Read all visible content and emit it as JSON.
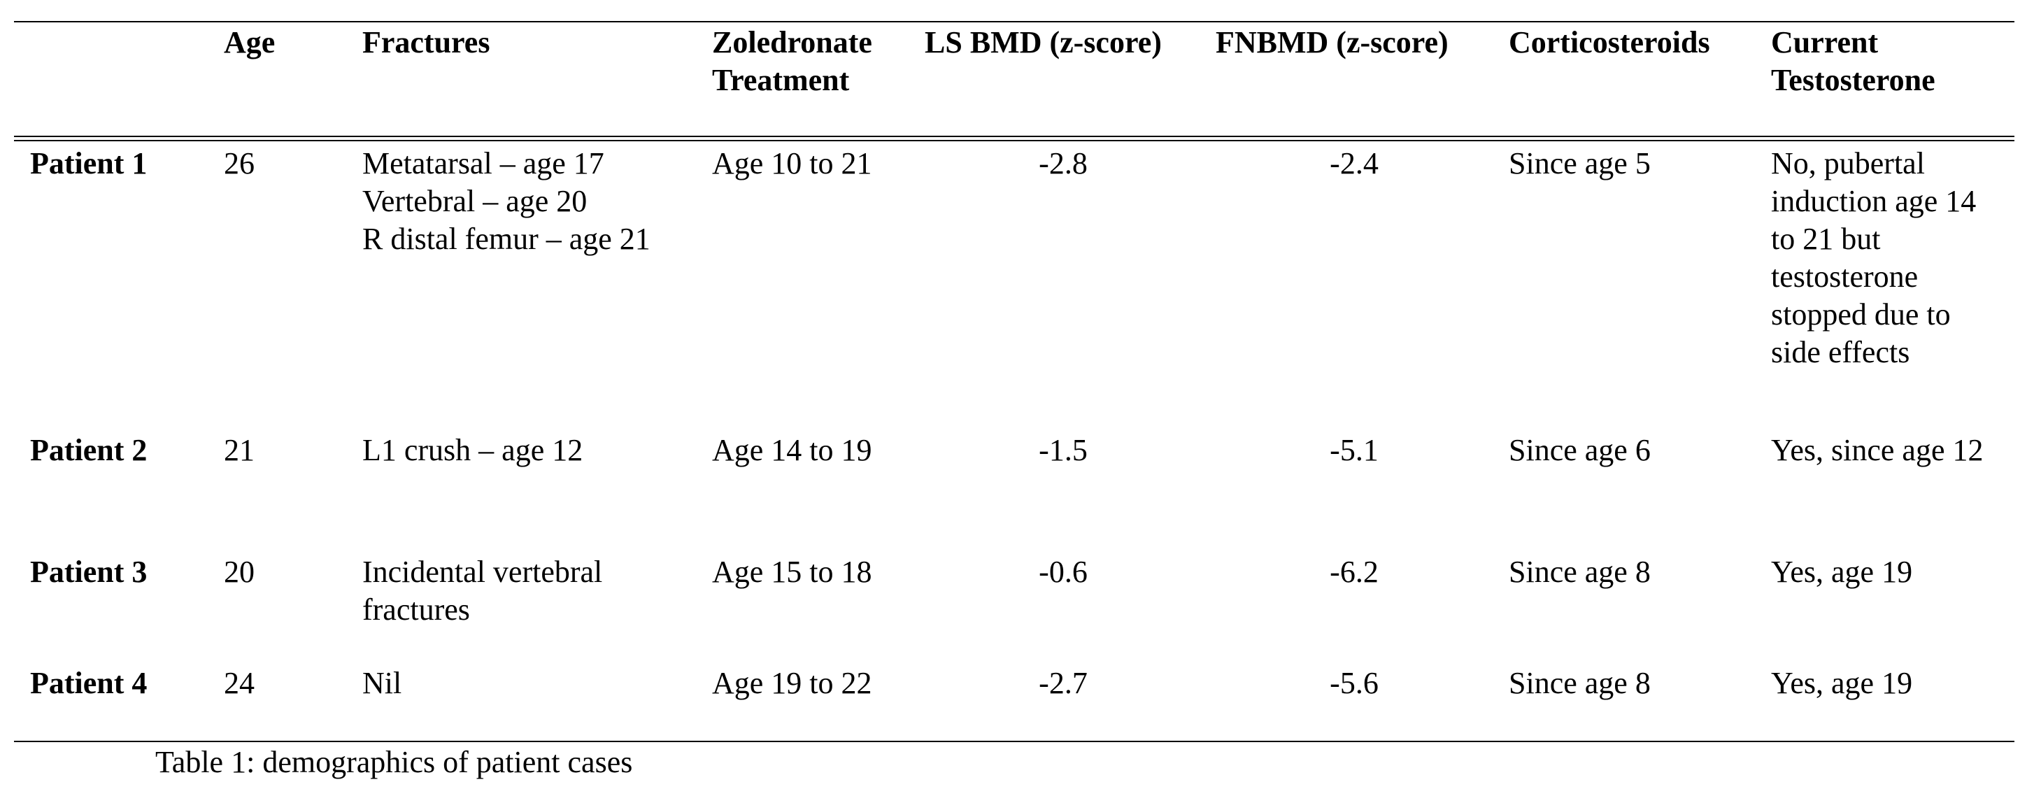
{
  "table": {
    "headers": {
      "age": "Age",
      "fractures": "Fractures",
      "zoledronate": [
        "Zoledronate",
        "Treatment"
      ],
      "ls_bmd": "LS BMD (z-score)",
      "fn_bmd": "FNBMD (z-score)",
      "corticosteroids": "Corticosteroids",
      "testosterone": [
        "Current",
        "Testosterone"
      ]
    },
    "rows": [
      {
        "label": "Patient 1",
        "age": "26",
        "fractures": [
          "Metatarsal – age 17",
          "Vertebral – age 20",
          "R distal femur – age 21"
        ],
        "zoledronate": "Age 10 to 21",
        "ls_bmd": "-2.8",
        "fn_bmd": "-2.4",
        "corticosteroids": "Since age 5",
        "testosterone": [
          "No, pubertal",
          "induction age 14",
          "to 21 but",
          "testosterone",
          "stopped due to",
          "side effects"
        ]
      },
      {
        "label": "Patient 2",
        "age": "21",
        "fractures": [
          "L1 crush – age 12"
        ],
        "zoledronate": "Age 14 to 19",
        "ls_bmd": "-1.5",
        "fn_bmd": "-5.1",
        "corticosteroids": "Since age 6",
        "testosterone": [
          "Yes, since age 12"
        ]
      },
      {
        "label": "Patient 3",
        "age": "20",
        "fractures": [
          "Incidental vertebral",
          "fractures"
        ],
        "zoledronate": "Age 15 to 18",
        "ls_bmd": "-0.6",
        "fn_bmd": "-6.2",
        "corticosteroids": "Since age 8",
        "testosterone": [
          "Yes, age 19"
        ]
      },
      {
        "label": "Patient 4",
        "age": "24",
        "fractures": [
          "Nil"
        ],
        "zoledronate": "Age 19 to 22",
        "ls_bmd": "-2.7",
        "fn_bmd": "-5.6",
        "corticosteroids": "Since age 8",
        "testosterone": [
          "Yes, age 19"
        ]
      }
    ]
  },
  "caption": "Table 1: demographics of patient cases"
}
